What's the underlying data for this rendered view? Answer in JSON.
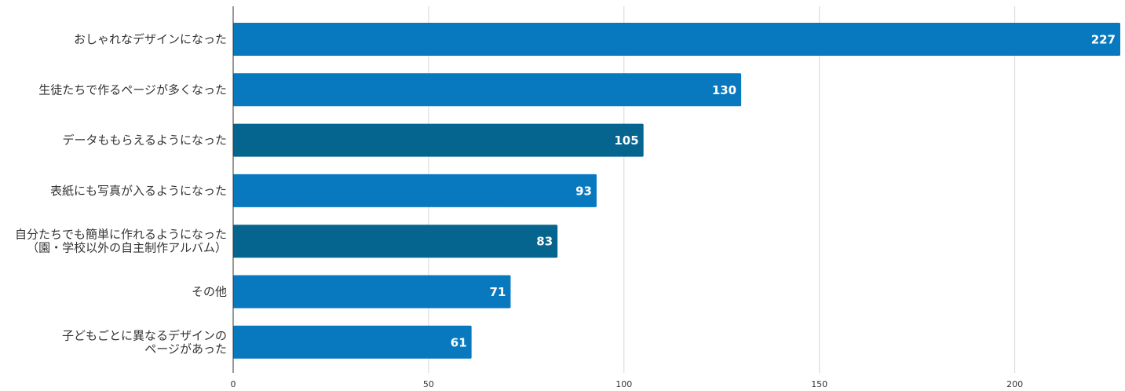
{
  "chart_data": {
    "type": "bar",
    "orientation": "horizontal",
    "categories": [
      [
        "おしゃれなデザインになった"
      ],
      [
        "生徒たちで作るページが多くなった"
      ],
      [
        "データももらえるようになった"
      ],
      [
        "表紙にも写真が入るようになった"
      ],
      [
        "自分たちでも簡単に作れるようになった",
        "（園・学校以外の自主制作アルバム）"
      ],
      [
        "その他"
      ],
      [
        "子どもごとに異なるデザインの",
        "ページがあった"
      ]
    ],
    "values": [
      227,
      130,
      105,
      93,
      83,
      71,
      61
    ],
    "data_labels": [
      "227",
      "130",
      "105",
      "93",
      "83",
      "71",
      "61"
    ],
    "bar_colors": [
      "#0879bf",
      "#0879bf",
      "#05658f",
      "#0879bf",
      "#05658f",
      "#0879bf",
      "#0879bf"
    ],
    "xlim": [
      0,
      227
    ],
    "xticks": [
      0,
      50,
      100,
      150,
      200
    ],
    "xtick_labels": [
      "0",
      "50",
      "100",
      "150",
      "200"
    ],
    "grid": true,
    "title": "",
    "xlabel": "",
    "ylabel": ""
  }
}
